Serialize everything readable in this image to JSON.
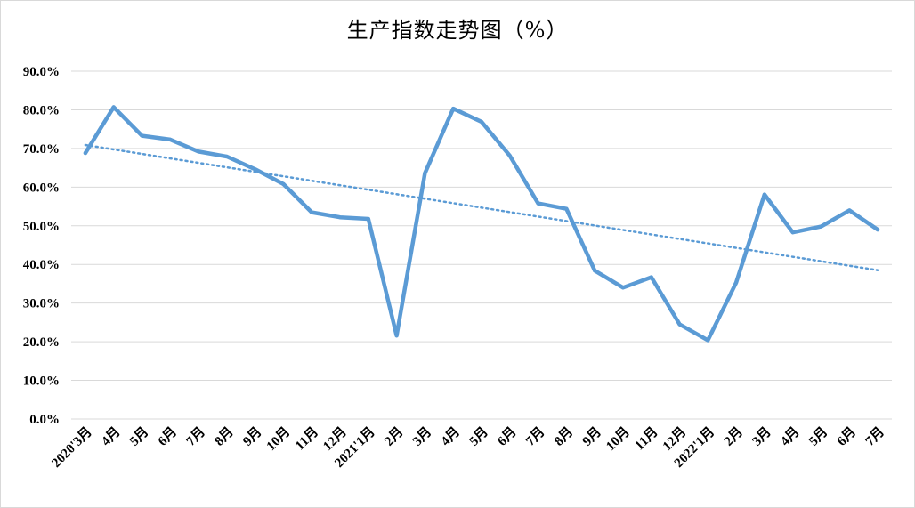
{
  "chart_data": {
    "type": "line",
    "title": "生产指数走势图（%）",
    "xlabel": "",
    "ylabel": "",
    "ylim": [
      0,
      90
    ],
    "yticks": [
      "0.0%",
      "10.0%",
      "20.0%",
      "30.0%",
      "40.0%",
      "50.0%",
      "60.0%",
      "70.0%",
      "80.0%",
      "90.0%"
    ],
    "grid": true,
    "legend": "none",
    "categories": [
      "2020'3月",
      "4月",
      "5月",
      "6月",
      "7月",
      "8月",
      "9月",
      "10月",
      "11月",
      "12月",
      "2021'1月",
      "2月",
      "3月",
      "4月",
      "5月",
      "6月",
      "7月",
      "8月",
      "9月",
      "10月",
      "11月",
      "12月",
      "2022'1月",
      "2月",
      "3月",
      "4月",
      "5月",
      "6月",
      "7月"
    ],
    "series": [
      {
        "values": [
          68.8,
          80.7,
          73.3,
          72.3,
          69.2,
          67.9,
          64.6,
          60.8,
          53.5,
          52.2,
          51.8,
          21.6,
          63.6,
          80.3,
          76.9,
          68.1,
          55.8,
          54.4,
          38.4,
          34.0,
          36.7,
          24.5,
          20.4,
          35.3,
          58.1,
          48.3,
          49.8,
          54.0,
          49.0
        ],
        "color": "#5b9bd5"
      }
    ],
    "trendline": {
      "type": "linear",
      "start": 70.9,
      "end": 38.5,
      "color": "#5b9bd5",
      "style": "dotted"
    }
  }
}
